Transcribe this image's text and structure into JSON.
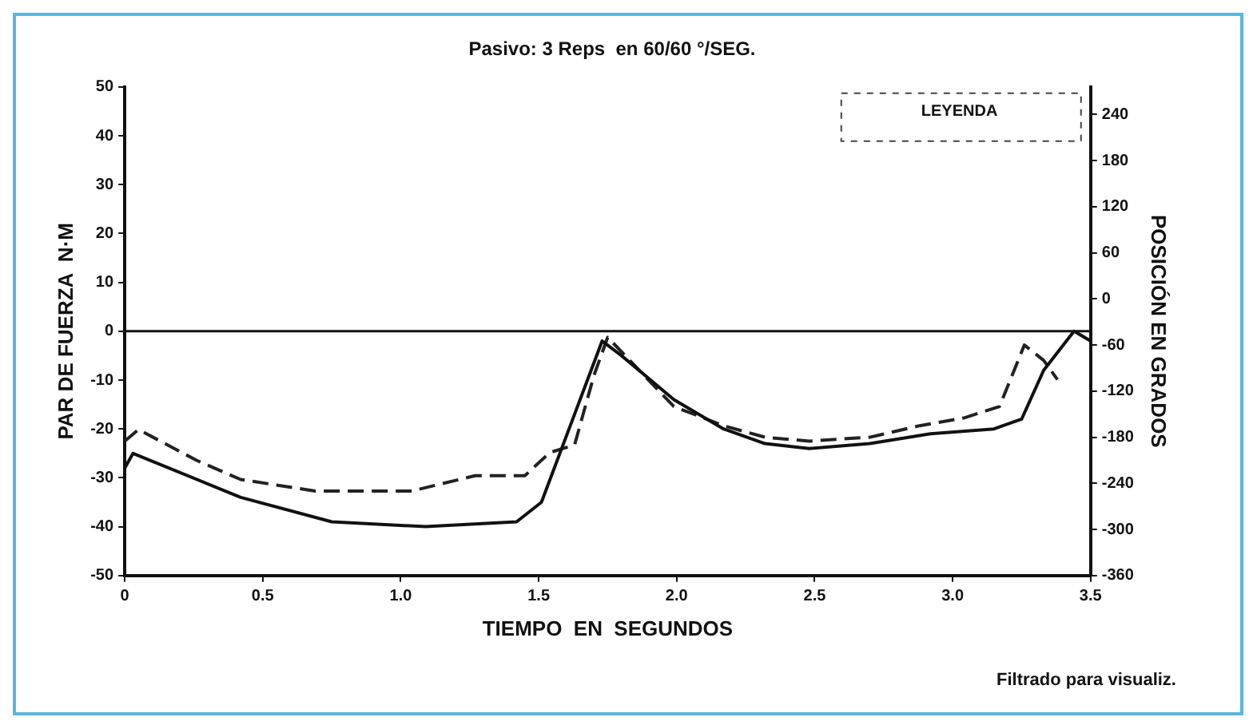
{
  "chart_data": {
    "type": "line",
    "title": "Pasivo: 3 Reps  en 60/60 °/SEG.",
    "xlabel": "TIEMPO  EN  SEGUNDOS",
    "ylabel": "PAR DE FUERZA  N·M",
    "y2label": "POSICIÓN EN GRADOS",
    "legend_title": "LEYENDA",
    "annotations": [
      "Filtrado para visualiz."
    ],
    "xlim": [
      0,
      3.5
    ],
    "xticks": [
      0,
      0.5,
      {
        "value": 1,
        "label": "1.0"
      },
      1.5,
      {
        "value": 2,
        "label": "2.0"
      },
      2.5,
      {
        "value": 3,
        "label": "3.0"
      },
      3.5
    ],
    "ylim": [
      -50,
      50
    ],
    "yticks": [
      -50,
      -40,
      -30,
      -20,
      -10,
      0,
      10,
      20,
      30,
      40,
      50
    ],
    "y2lim": [
      -360,
      276
    ],
    "y2ticks": [
      -360,
      -300,
      -240,
      -180,
      -120,
      -60,
      0,
      60,
      120,
      180,
      240
    ],
    "grid": false,
    "marker": "none",
    "ref_lines": [
      {
        "axis": "y",
        "value": 0,
        "color": "#111111"
      }
    ],
    "series": [
      {
        "color": "#111111",
        "line_style": "solid",
        "x": [
          0,
          0.03,
          0.42,
          0.75,
          1.09,
          1.42,
          1.51,
          1.63,
          1.73,
          1.8,
          1.99,
          2.17,
          2.32,
          2.48,
          2.7,
          2.92,
          3.15,
          3.25,
          3.33,
          3.44,
          3.5
        ],
        "values": [
          -28,
          -25,
          -34,
          -39,
          -40,
          -39,
          -35,
          -17,
          -2,
          -5,
          -14,
          -20,
          -23,
          -24,
          -23,
          -21,
          -20,
          -18,
          -8,
          0,
          -2
        ]
      },
      {
        "color": "#222222",
        "line_style": "dashed",
        "axis": "y2",
        "x": [
          0,
          0.05,
          0.26,
          0.42,
          0.69,
          1.04,
          1.27,
          1.45,
          1.54,
          1.63,
          1.7,
          1.75,
          1.83,
          1.99,
          2.17,
          2.32,
          2.48,
          2.7,
          2.88,
          3.04,
          3.17,
          3.26,
          3.33,
          3.38
        ],
        "values": [
          -185,
          -170,
          -210,
          -235,
          -250,
          -250,
          -230,
          -230,
          -200,
          -190,
          -100,
          -50,
          -80,
          -140,
          -165,
          -180,
          -185,
          -180,
          -165,
          -155,
          -140,
          -60,
          -80,
          -105
        ]
      }
    ]
  }
}
